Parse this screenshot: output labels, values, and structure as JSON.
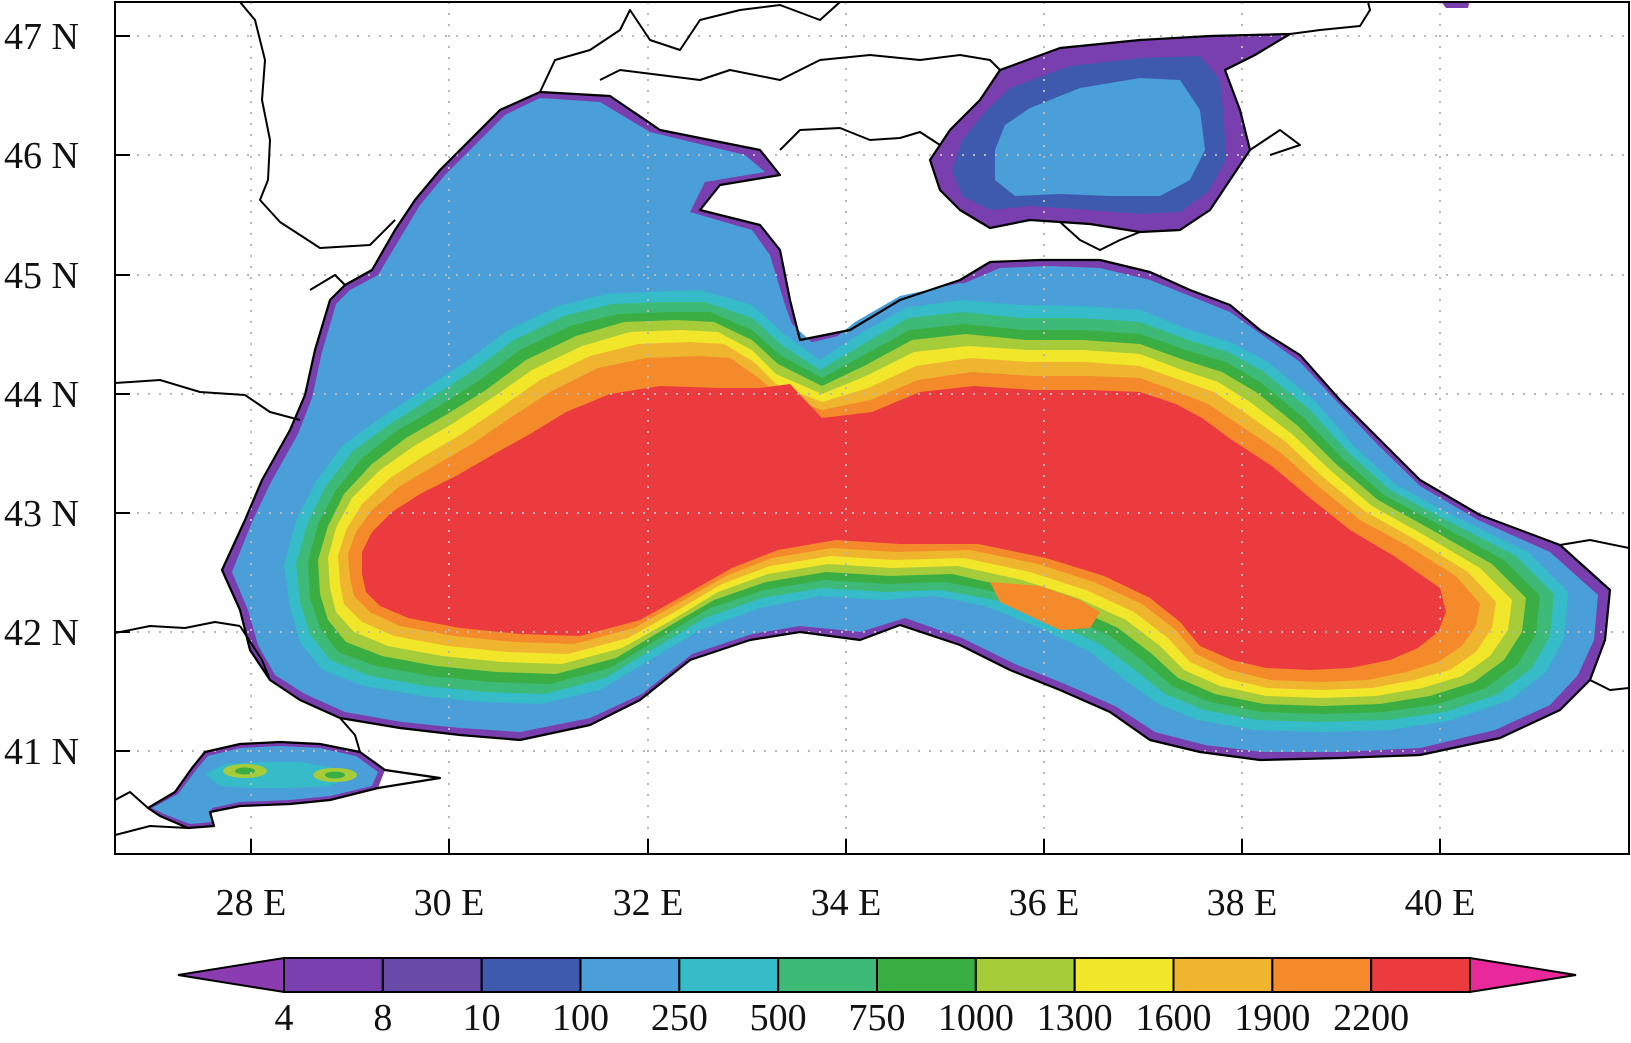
{
  "map": {
    "lat_labels": [
      "47 N",
      "46 N",
      "45 N",
      "44 N",
      "43 N",
      "42 N",
      "41 N"
    ],
    "lon_labels": [
      "28 E",
      "30 E",
      "32 E",
      "34 E",
      "36 E",
      "38 E",
      "40 E"
    ]
  },
  "colorbar": {
    "labels": [
      "4",
      "8",
      "10",
      "100",
      "250",
      "500",
      "750",
      "1000",
      "1300",
      "1600",
      "1900",
      "2200"
    ],
    "colors": [
      "#7a3fae",
      "#6a4aa8",
      "#3d5aae",
      "#4a9fd8",
      "#35bcc8",
      "#3dba78",
      "#3aae43",
      "#a6cc3a",
      "#f2e62a",
      "#f0b52e",
      "#f48a2a",
      "#ec3b3f"
    ],
    "under_color": "#8a3cb0",
    "over_color": "#e8289b"
  },
  "zones": {
    "land": "#ffffff",
    "shelf": "#4a9fd8",
    "shallow_edge": "#7a3fae"
  }
}
